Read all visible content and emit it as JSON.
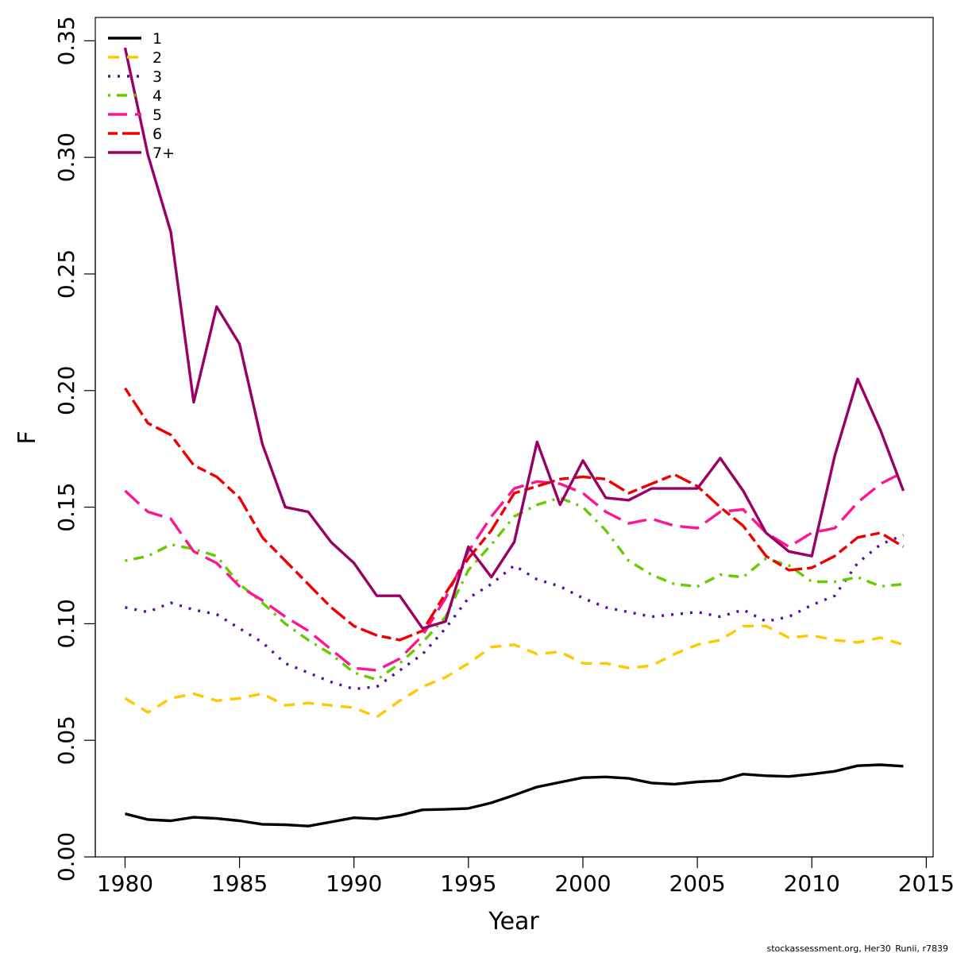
{
  "chart_data": {
    "type": "line",
    "title": "",
    "xlabel": "Year",
    "ylabel": "F",
    "xlim": [
      1978.7,
      2015.3
    ],
    "ylim": [
      0,
      0.36
    ],
    "x_ticks": [
      1980,
      1985,
      1990,
      1995,
      2000,
      2005,
      2010,
      2015
    ],
    "x_tick_labels": [
      "1980",
      "1985",
      "1990",
      "1995",
      "2000",
      "2005",
      "2010",
      "2015"
    ],
    "y_ticks": [
      0,
      0.05,
      0.1,
      0.15,
      0.2,
      0.25,
      0.3,
      0.35
    ],
    "y_tick_labels": [
      "0.00",
      "0.05",
      "0.10",
      "0.15",
      "0.20",
      "0.25",
      "0.30",
      "0.35"
    ],
    "grid": false,
    "legend_position": "top-left",
    "x": [
      1980,
      1981,
      1982,
      1983,
      1984,
      1985,
      1986,
      1987,
      1988,
      1989,
      1990,
      1991,
      1992,
      1993,
      1994,
      1995,
      1996,
      1997,
      1998,
      1999,
      2000,
      2001,
      2002,
      2003,
      2004,
      2005,
      2006,
      2007,
      2008,
      2009,
      2010,
      2011,
      2012,
      2013,
      2014
    ],
    "series": [
      {
        "name": "1",
        "color": "#000000",
        "dash": "solid",
        "values": [
          0.0185,
          0.016,
          0.0155,
          0.017,
          0.0165,
          0.0155,
          0.014,
          0.0138,
          0.0132,
          0.015,
          0.0168,
          0.0163,
          0.0178,
          0.0202,
          0.0204,
          0.0208,
          0.0232,
          0.0265,
          0.03,
          0.032,
          0.034,
          0.0343,
          0.0337,
          0.0317,
          0.0312,
          0.0322,
          0.0327,
          0.0355,
          0.0348,
          0.0345,
          0.0355,
          0.0367,
          0.0391,
          0.0395,
          0.0389
        ]
      },
      {
        "name": "2",
        "color": "#FFC800",
        "dash": "dashed",
        "values": [
          0.068,
          0.062,
          0.068,
          0.07,
          0.067,
          0.068,
          0.07,
          0.065,
          0.066,
          0.065,
          0.064,
          0.06,
          0.067,
          0.073,
          0.077,
          0.083,
          0.09,
          0.091,
          0.087,
          0.088,
          0.083,
          0.083,
          0.081,
          0.082,
          0.087,
          0.091,
          0.093,
          0.099,
          0.099,
          0.094,
          0.095,
          0.093,
          0.092,
          0.094,
          0.091
        ]
      },
      {
        "name": "3",
        "color": "#5C0E9B",
        "dash": "dotted",
        "values": [
          0.107,
          0.105,
          0.109,
          0.106,
          0.104,
          0.098,
          0.092,
          0.083,
          0.079,
          0.075,
          0.072,
          0.073,
          0.08,
          0.087,
          0.098,
          0.111,
          0.117,
          0.125,
          0.119,
          0.116,
          0.111,
          0.107,
          0.105,
          0.103,
          0.104,
          0.105,
          0.103,
          0.106,
          0.101,
          0.103,
          0.108,
          0.112,
          0.126,
          0.134,
          0.138
        ]
      },
      {
        "name": "4",
        "color": "#66CC00",
        "dash": "dotdash",
        "values": [
          0.127,
          0.129,
          0.134,
          0.132,
          0.129,
          0.117,
          0.109,
          0.1,
          0.093,
          0.087,
          0.079,
          0.076,
          0.083,
          0.092,
          0.103,
          0.123,
          0.134,
          0.146,
          0.151,
          0.154,
          0.15,
          0.14,
          0.127,
          0.121,
          0.117,
          0.116,
          0.121,
          0.12,
          0.128,
          0.125,
          0.118,
          0.118,
          0.12,
          0.116,
          0.117
        ]
      },
      {
        "name": "5",
        "color": "#FF1493",
        "dash": "longdash",
        "values": [
          0.157,
          0.148,
          0.145,
          0.131,
          0.126,
          0.116,
          0.11,
          0.103,
          0.097,
          0.089,
          0.081,
          0.08,
          0.085,
          0.095,
          0.111,
          0.131,
          0.146,
          0.158,
          0.161,
          0.16,
          0.156,
          0.148,
          0.143,
          0.145,
          0.142,
          0.141,
          0.148,
          0.149,
          0.139,
          0.133,
          0.139,
          0.141,
          0.152,
          0.16,
          0.165
        ]
      },
      {
        "name": "6",
        "color": "#EE0000",
        "dash": "twodash",
        "values": [
          0.201,
          0.186,
          0.181,
          0.168,
          0.163,
          0.154,
          0.137,
          0.127,
          0.117,
          0.107,
          0.099,
          0.095,
          0.093,
          0.097,
          0.113,
          0.128,
          0.14,
          0.156,
          0.159,
          0.162,
          0.163,
          0.162,
          0.156,
          0.16,
          0.164,
          0.159,
          0.15,
          0.142,
          0.129,
          0.123,
          0.124,
          0.129,
          0.137,
          0.139,
          0.133
        ]
      },
      {
        "name": "7+",
        "color": "#990066",
        "dash": "solid",
        "values": [
          0.347,
          0.301,
          0.268,
          0.195,
          0.236,
          0.22,
          0.177,
          0.15,
          0.148,
          0.135,
          0.126,
          0.112,
          0.112,
          0.098,
          0.101,
          0.133,
          0.12,
          0.135,
          0.178,
          0.151,
          0.17,
          0.154,
          0.153,
          0.158,
          0.158,
          0.158,
          0.171,
          0.157,
          0.139,
          0.131,
          0.129,
          0.172,
          0.205,
          0.183,
          0.157
        ]
      }
    ],
    "credit": "stockassessment.org, Her30_Runii, r7839"
  }
}
